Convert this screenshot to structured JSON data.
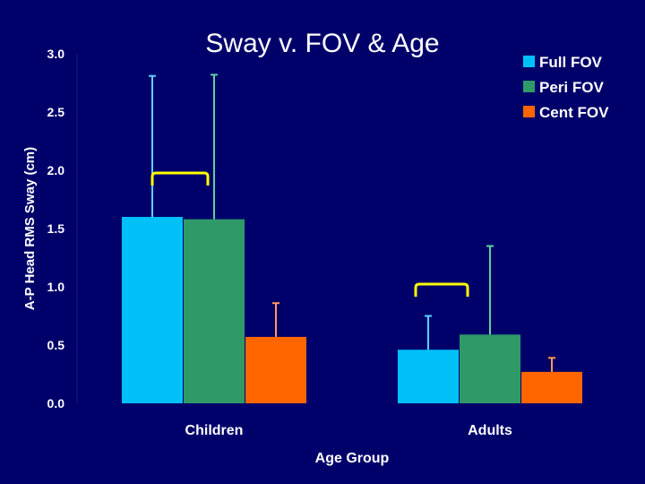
{
  "slide": {
    "title": "Sway v. FOV & Age"
  },
  "colors": {
    "background": "#00006b",
    "full_fov": "#00c0f8",
    "peri_fov": "#2f9a68",
    "cent_fov": "#ff6600",
    "error_bars": "#ffffff",
    "brackets": "#ffff00",
    "text": "#ffffff"
  },
  "chart_data": {
    "type": "bar",
    "title": "",
    "xlabel": "Age Group",
    "ylabel": "A-P Head RMS Sway (cm)",
    "ylim": [
      0,
      3.0
    ],
    "yticks": [
      "0.0",
      "0.5",
      "1.0",
      "1.5",
      "2.0",
      "2.5",
      "3.0"
    ],
    "categories": [
      "Children",
      "Adults"
    ],
    "series": [
      {
        "name": "Full FOV",
        "color": "#00c0f8",
        "values": [
          1.6,
          0.46
        ],
        "error_upper": [
          2.81,
          0.75
        ]
      },
      {
        "name": "Peri FOV",
        "color": "#2f9a68",
        "values": [
          1.58,
          0.59
        ],
        "error_upper": [
          2.82,
          1.35
        ]
      },
      {
        "name": "Cent FOV",
        "color": "#ff6600",
        "values": [
          0.57,
          0.27
        ],
        "error_upper": [
          0.86,
          0.39
        ]
      }
    ],
    "legend_position": "top-right",
    "grid": false,
    "annotations": [
      "bracket over Children Full FOV and Peri FOV",
      "bracket over Adults Full FOV and Peri FOV"
    ]
  }
}
